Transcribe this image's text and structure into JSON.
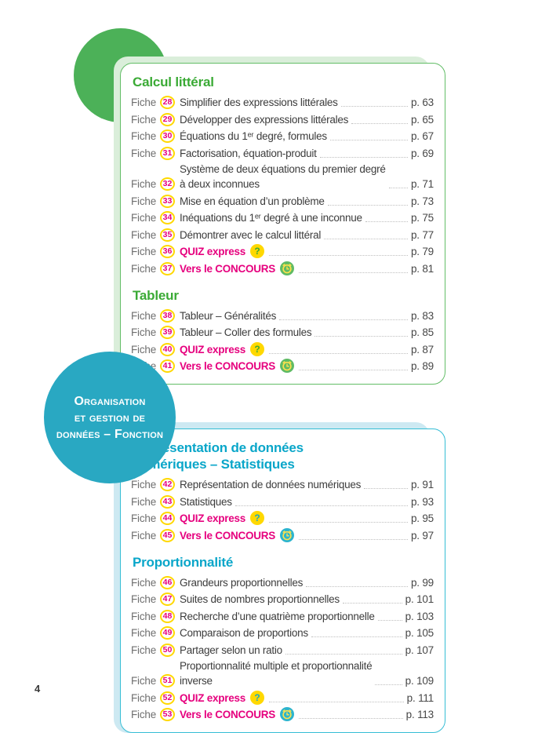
{
  "labels": {
    "fiche": "Fiche"
  },
  "footer": {
    "page_number": "4"
  },
  "icons": {
    "question_glyph": "?"
  },
  "side_bubble": {
    "lines": [
      "Organisation",
      "et gestion de",
      "données – Fonction"
    ]
  },
  "colors": {
    "green": {
      "main": "#4cb158",
      "pale": "#daeeda",
      "border": "#63bd67",
      "heading": "#3aaa35",
      "question": "#3aaa35",
      "clock_bg": "#5fbb64"
    },
    "cyan": {
      "main": "#29a8c2",
      "pale": "#cde9f2",
      "border": "#35bdd5",
      "heading": "#09a6c9",
      "question": "#1ca8c4",
      "clock_bg": "#2cb4ce"
    },
    "magenta": "#e6007e",
    "yellow": "#ffd800",
    "clock_glyph": "#ffe14d"
  },
  "panels": [
    {
      "theme": "green",
      "sections": [
        {
          "heading": "Calcul littéral",
          "items": [
            {
              "num": "28",
              "title": "Simplifier des expressions littérales",
              "page": "p. 63",
              "kind": "normal"
            },
            {
              "num": "29",
              "title": "Développer des expressions littérales",
              "page": "p. 65",
              "kind": "normal"
            },
            {
              "num": "30",
              "title": "Équations du 1ᵉʳ degré, formules",
              "page": "p. 67",
              "kind": "normal"
            },
            {
              "num": "31",
              "title": "Factorisation, équation-produit",
              "page": "p. 69",
              "kind": "normal"
            },
            {
              "num": "32",
              "title": "Système de deux équations du premier degré\nà deux inconnues",
              "page": "p. 71",
              "kind": "normal"
            },
            {
              "num": "33",
              "title": "Mise en équation d’un problème",
              "page": "p. 73",
              "kind": "normal"
            },
            {
              "num": "34",
              "title": "Inéquations du 1ᵉʳ degré à une inconnue",
              "page": "p. 75",
              "kind": "normal"
            },
            {
              "num": "35",
              "title": "Démontrer avec le calcul littéral",
              "page": "p. 77",
              "kind": "normal"
            },
            {
              "num": "36",
              "title": "QUIZ express",
              "page": "p. 79",
              "kind": "quiz",
              "icon": "question-mark-icon"
            },
            {
              "num": "37",
              "title": "Vers le CONCOURS",
              "page": "p. 81",
              "kind": "concours",
              "icon": "clock-icon"
            }
          ]
        },
        {
          "heading": "Tableur",
          "items": [
            {
              "num": "38",
              "title": "Tableur – Généralités",
              "page": "p. 83",
              "kind": "normal"
            },
            {
              "num": "39",
              "title": "Tableur – Coller des formules",
              "page": "p. 85",
              "kind": "normal"
            },
            {
              "num": "40",
              "title": "QUIZ express",
              "page": "p. 87",
              "kind": "quiz",
              "icon": "question-mark-icon"
            },
            {
              "num": "41",
              "title": "Vers le CONCOURS",
              "page": "p. 89",
              "kind": "concours",
              "icon": "clock-icon"
            }
          ]
        }
      ]
    },
    {
      "theme": "cyan",
      "sections": [
        {
          "heading": "Représentation de données\nnumériques – Statistiques",
          "items": [
            {
              "num": "42",
              "title": "Représentation de données numériques",
              "page": "p. 91",
              "kind": "normal"
            },
            {
              "num": "43",
              "title": "Statistiques",
              "page": "p. 93",
              "kind": "normal"
            },
            {
              "num": "44",
              "title": "QUIZ express",
              "page": "p. 95",
              "kind": "quiz",
              "icon": "question-mark-icon"
            },
            {
              "num": "45",
              "title": "Vers le CONCOURS",
              "page": "p. 97",
              "kind": "concours",
              "icon": "clock-icon"
            }
          ]
        },
        {
          "heading": "Proportionnalité",
          "items": [
            {
              "num": "46",
              "title": "Grandeurs proportionnelles",
              "page": "p. 99",
              "kind": "normal"
            },
            {
              "num": "47",
              "title": "Suites de nombres proportionnelles",
              "page": "p. 101",
              "kind": "normal"
            },
            {
              "num": "48",
              "title": "Recherche d’une quatrième proportionnelle",
              "page": "p. 103",
              "kind": "normal"
            },
            {
              "num": "49",
              "title": "Comparaison de proportions",
              "page": "p. 105",
              "kind": "normal"
            },
            {
              "num": "50",
              "title": "Partager selon un ratio",
              "page": "p. 107",
              "kind": "normal"
            },
            {
              "num": "51",
              "title": "Proportionnalité multiple et proportionnalité\ninverse",
              "page": "p. 109",
              "kind": "normal"
            },
            {
              "num": "52",
              "title": "QUIZ express",
              "page": "p. 111",
              "kind": "quiz",
              "icon": "question-mark-icon"
            },
            {
              "num": "53",
              "title": "Vers le CONCOURS",
              "page": "p. 113",
              "kind": "concours",
              "icon": "clock-icon"
            }
          ]
        }
      ]
    }
  ]
}
